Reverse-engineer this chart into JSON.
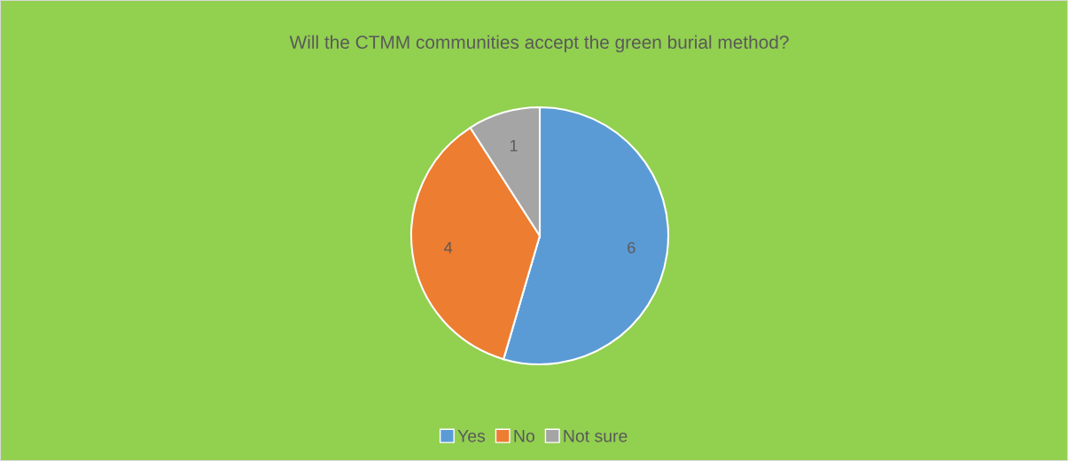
{
  "chart_data": {
    "type": "pie",
    "title": "Will the CTMM communities accept the green burial method?",
    "categories": [
      "Yes",
      "No",
      "Not sure"
    ],
    "values": [
      6,
      4,
      1
    ],
    "colors": [
      "#5b9bd5",
      "#ed7d31",
      "#a5a5a5"
    ],
    "data_labels": true,
    "legend": "bottom"
  }
}
